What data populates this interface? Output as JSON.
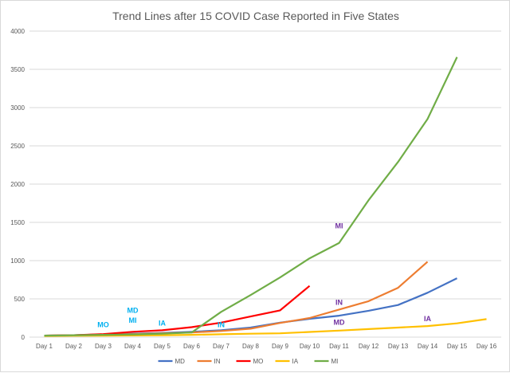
{
  "chart_data": {
    "type": "line",
    "title": "Trend Lines after 15 COVID Case Reported in Five States",
    "xlabel": "",
    "ylabel": "",
    "categories": [
      "Day 1",
      "Day 2",
      "Day 3",
      "Day 4",
      "Day 5",
      "Day 6",
      "Day 7",
      "Day 8",
      "Day 9",
      "Day 10",
      "Day 11",
      "Day 12",
      "Day 13",
      "Day 14",
      "Day 15",
      "Day 16"
    ],
    "ylim": [
      0,
      4000
    ],
    "yticks": [
      0,
      500,
      1000,
      1500,
      2000,
      2500,
      3000,
      3500,
      4000
    ],
    "grid": true,
    "legend_position": "bottom",
    "series": [
      {
        "name": "MD",
        "color": "#4472c4",
        "values": [
          20,
          25,
          35,
          45,
          55,
          70,
          90,
          125,
          190,
          240,
          280,
          345,
          420,
          580,
          770,
          null
        ]
      },
      {
        "name": "IN",
        "color": "#ed7d31",
        "values": [
          20,
          25,
          35,
          40,
          50,
          60,
          80,
          110,
          185,
          250,
          360,
          470,
          645,
          985,
          null,
          null
        ]
      },
      {
        "name": "MO",
        "color": "#ff0000",
        "values": [
          20,
          25,
          40,
          70,
          90,
          130,
          190,
          270,
          350,
          670,
          null,
          null,
          null,
          null,
          null,
          null
        ]
      },
      {
        "name": "IA",
        "color": "#ffc000",
        "values": [
          15,
          18,
          20,
          22,
          25,
          30,
          38,
          45,
          50,
          68,
          85,
          105,
          125,
          145,
          180,
          235
        ]
      },
      {
        "name": "MI",
        "color": "#70ad47",
        "values": [
          20,
          25,
          30,
          35,
          45,
          60,
          330,
          550,
          780,
          1030,
          1230,
          1790,
          2290,
          2850,
          3660,
          null
        ]
      }
    ],
    "annotations": [
      {
        "text": "MO",
        "color": "#00b0f0",
        "x": "Day 3",
        "y": 130
      },
      {
        "text": "MD",
        "color": "#00b0f0",
        "x": "Day 4",
        "y": 320
      },
      {
        "text": "MI",
        "color": "#00b0f0",
        "x": "Day 4",
        "y": 190
      },
      {
        "text": "IA",
        "color": "#00b0f0",
        "x": "Day 5",
        "y": 150
      },
      {
        "text": "IN",
        "color": "#00b0f0",
        "x": "Day 7",
        "y": 130
      },
      {
        "text": "MI",
        "color": "#7030a0",
        "x": "Day 11",
        "y": 1420
      },
      {
        "text": "IN",
        "color": "#7030a0",
        "x": "Day 11",
        "y": 420
      },
      {
        "text": "MD",
        "color": "#7030a0",
        "x": "Day 11",
        "y": 160
      },
      {
        "text": "IA",
        "color": "#7030a0",
        "x": "Day 14",
        "y": 210
      }
    ]
  }
}
